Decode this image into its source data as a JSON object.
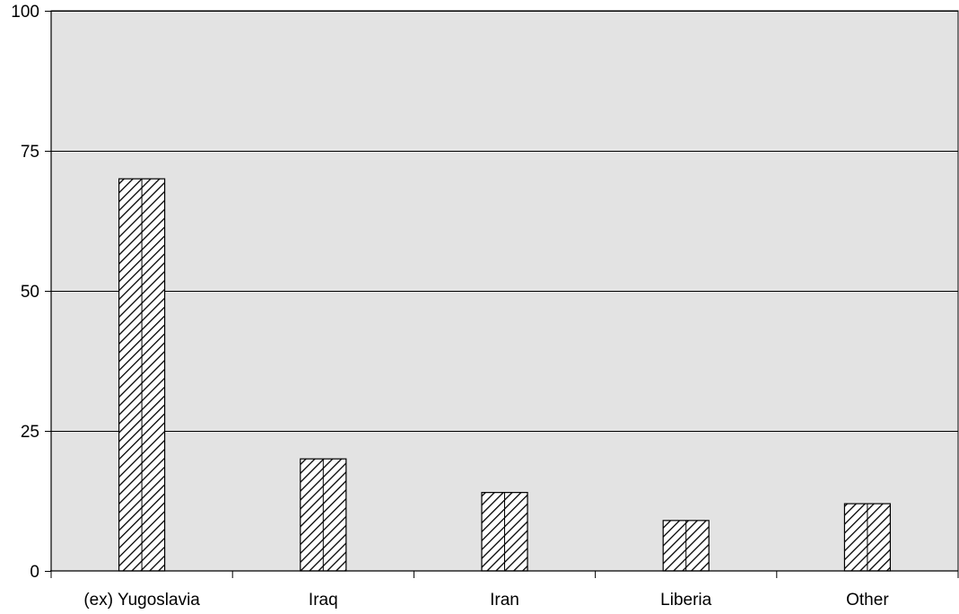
{
  "chart_data": {
    "type": "bar",
    "categories": [
      "(ex) Yugoslavia",
      "Iraq",
      "Iran",
      "Liberia",
      "Other"
    ],
    "values": [
      70,
      20,
      14,
      9,
      12
    ],
    "title": "",
    "xlabel": "",
    "ylabel": "",
    "ylim": [
      0,
      100
    ],
    "yticks": [
      0,
      25,
      50,
      75,
      100
    ],
    "grid": true,
    "legend": "none",
    "colors": {
      "plot_background": "#e3e3e3",
      "bar_fill": "#ffffff",
      "bar_hatch": "#000000",
      "gridline": "#000000"
    }
  }
}
